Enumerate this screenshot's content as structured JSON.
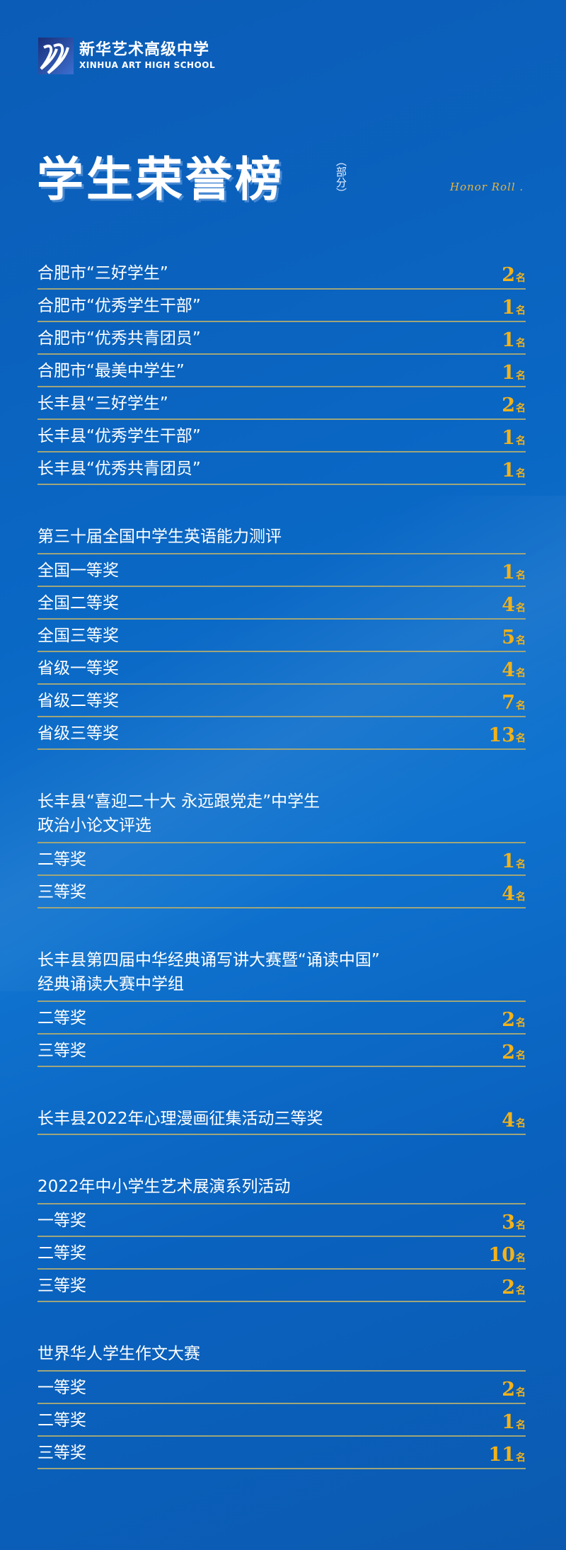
{
  "logo": {
    "cn": "新华艺术高级中学",
    "en": "XINHUA ART HIGH SCHOOL"
  },
  "title": "学生荣誉榜",
  "title_note": "（部分）",
  "honor_roll": "Honor Roll .",
  "unit": "名",
  "colors": {
    "background": "#0a67c4",
    "value": "#f2b21a",
    "rule": "#9fa57a"
  },
  "groups": [
    {
      "header": "",
      "rows": [
        {
          "label": "合肥市“三好学生”",
          "value": "2"
        },
        {
          "label": "合肥市“优秀学生干部”",
          "value": "1"
        },
        {
          "label": "合肥市“优秀共青团员”",
          "value": "1"
        },
        {
          "label": "合肥市“最美中学生”",
          "value": "1"
        },
        {
          "label": "长丰县“三好学生”",
          "value": "2"
        },
        {
          "label": "长丰县“优秀学生干部”",
          "value": "1"
        },
        {
          "label": "长丰县“优秀共青团员”",
          "value": "1"
        }
      ]
    },
    {
      "header": "第三十届全国中学生英语能力测评",
      "rows": [
        {
          "label": "全国一等奖",
          "value": "1"
        },
        {
          "label": "全国二等奖",
          "value": "4"
        },
        {
          "label": "全国三等奖",
          "value": "5"
        },
        {
          "label": "省级一等奖",
          "value": "4"
        },
        {
          "label": "省级二等奖",
          "value": "7"
        },
        {
          "label": "省级三等奖",
          "value": "13"
        }
      ]
    },
    {
      "header": "长丰县“喜迎二十大 永远跟党走”中学生\n政治小论文评选",
      "rows": [
        {
          "label": "二等奖",
          "value": "1"
        },
        {
          "label": "三等奖",
          "value": "4"
        }
      ]
    },
    {
      "header": "长丰县第四届中华经典诵写讲大赛暨“诵读中国”\n经典诵读大赛中学组",
      "rows": [
        {
          "label": "二等奖",
          "value": "2"
        },
        {
          "label": "三等奖",
          "value": "2"
        }
      ]
    },
    {
      "header": "",
      "rows": [
        {
          "label": "长丰县2022年心理漫画征集活动三等奖",
          "value": "4"
        }
      ]
    },
    {
      "header": "2022年中小学生艺术展演系列活动",
      "rows": [
        {
          "label": "一等奖",
          "value": "3"
        },
        {
          "label": "二等奖",
          "value": "10"
        },
        {
          "label": "三等奖",
          "value": "2"
        }
      ]
    },
    {
      "header": "世界华人学生作文大赛",
      "rows": [
        {
          "label": "一等奖",
          "value": "2"
        },
        {
          "label": "二等奖",
          "value": "1"
        },
        {
          "label": "三等奖",
          "value": "11"
        }
      ]
    }
  ]
}
